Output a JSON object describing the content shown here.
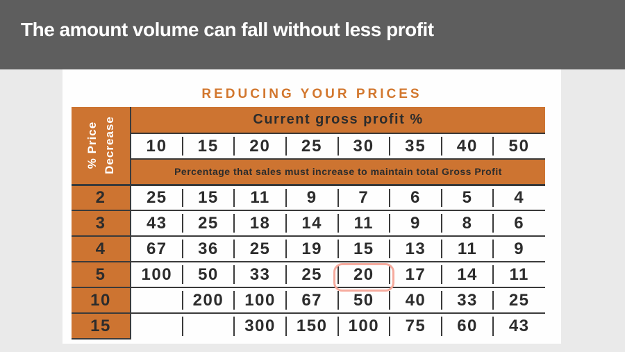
{
  "banner": {
    "title": "The amount volume can fall without less profit"
  },
  "table": {
    "heading": "REDUCING YOUR PRICES",
    "column_group_header": "Current gross profit %",
    "row_group_header": "% Price Decrease",
    "row_group_header_lines": [
      "% Price",
      "Decrease"
    ],
    "subheader": "Percentage that sales must increase to maintain total Gross Profit",
    "columns": [
      "10",
      "15",
      "20",
      "25",
      "30",
      "35",
      "40",
      "50"
    ],
    "rows": [
      {
        "label": "2",
        "values": [
          "25",
          "15",
          "11",
          "9",
          "7",
          "6",
          "5",
          "4"
        ]
      },
      {
        "label": "3",
        "values": [
          "43",
          "25",
          "18",
          "14",
          "11",
          "9",
          "8",
          "6"
        ]
      },
      {
        "label": "4",
        "values": [
          "67",
          "36",
          "25",
          "19",
          "15",
          "13",
          "11",
          "9"
        ]
      },
      {
        "label": "5",
        "values": [
          "100",
          "50",
          "33",
          "25",
          "20",
          "17",
          "14",
          "11"
        ]
      },
      {
        "label": "10",
        "values": [
          "",
          "200",
          "100",
          "67",
          "50",
          "40",
          "33",
          "25"
        ]
      },
      {
        "label": "15",
        "values": [
          "",
          "",
          "300",
          "150",
          "100",
          "75",
          "60",
          "43"
        ]
      }
    ],
    "highlight": {
      "row_label": "5",
      "column": "30",
      "value": "20"
    }
  },
  "colors": {
    "orange": "#cd7431",
    "heading_orange": "#d2772e",
    "banner_gray": "#5e5e5e",
    "page_background": "#eaeaea",
    "grid_line": "#3a3a3a",
    "cell_text": "#2c2c2c",
    "highlight_ring": "#f6ab9e",
    "highlight_text": "#ce7a2f"
  }
}
